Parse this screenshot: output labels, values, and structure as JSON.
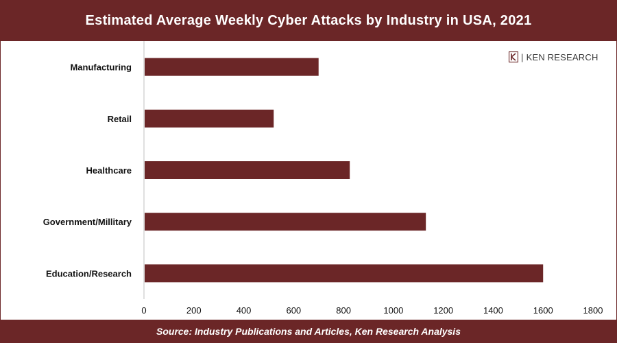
{
  "title": "Estimated Average Weekly Cyber Attacks by Industry in USA, 2021",
  "source": "Source: Industry Publications and Articles, Ken Research Analysis",
  "logo": {
    "text": "KEN RESEARCH",
    "mark": "K"
  },
  "colors": {
    "brand": "#6b2627",
    "bar": "#6b2627"
  },
  "chart_data": {
    "type": "bar",
    "orientation": "horizontal",
    "categories": [
      "Manufacturing",
      "Retail",
      "Healthcare",
      "Government/Millitary",
      "Education/Research"
    ],
    "values": [
      700,
      520,
      825,
      1130,
      1600
    ],
    "xlim": [
      0,
      1800
    ],
    "xticks": [
      0,
      200,
      400,
      600,
      800,
      1000,
      1200,
      1400,
      1600,
      1800
    ],
    "xtick_labels": [
      "0",
      "200",
      "400",
      "600",
      "800",
      "1000",
      "1200",
      "1400",
      "1600",
      "1800"
    ],
    "grid": false,
    "legend": "none"
  }
}
